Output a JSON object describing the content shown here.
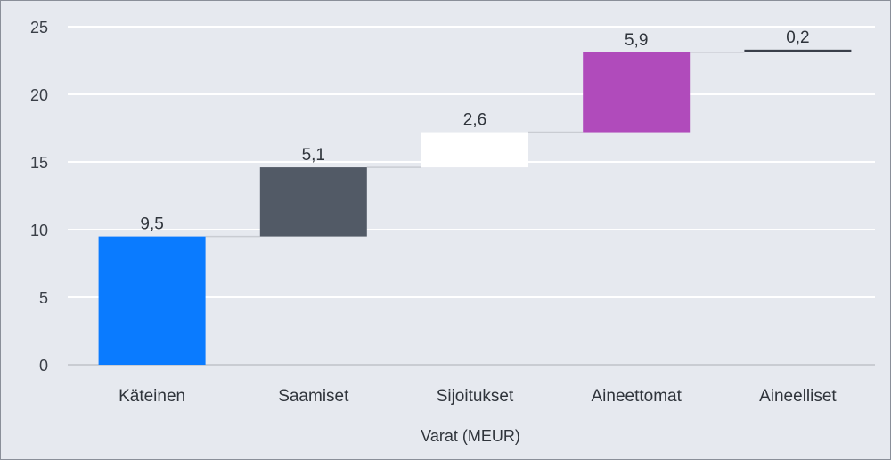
{
  "chart_data": {
    "type": "waterfall",
    "title": "",
    "xlabel": "Varat (MEUR)",
    "ylabel": "",
    "ylim": [
      0,
      25
    ],
    "y_ticks": [
      "0",
      "5",
      "10",
      "15",
      "20",
      "25"
    ],
    "grid": true,
    "legend": "none",
    "categories": [
      "Käteinen",
      "Saamiset",
      "Sijoitukset",
      "Aineettomat",
      "Aineelliset"
    ],
    "values": [
      9.5,
      5.1,
      2.6,
      5.9,
      0.2
    ],
    "value_labels": [
      "9,5",
      "5,1",
      "2,6",
      "5,9",
      "0,2"
    ],
    "colors": [
      "#0a7bff",
      "#525a66",
      "#ffffff",
      "#b04bbb",
      "#3a3f4a"
    ]
  }
}
